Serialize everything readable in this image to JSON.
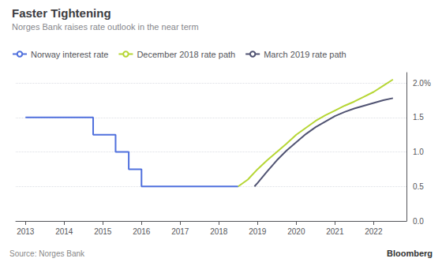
{
  "chart_data": {
    "type": "line",
    "title": "Faster Tightening",
    "subtitle": "Norges Bank raises rate outlook in the near term",
    "annotations": [
      "Source: Norges Bank",
      "Bloomberg"
    ],
    "xlim": [
      2012.75,
      2022.85
    ],
    "xticks": [
      2013,
      2014,
      2015,
      2016,
      2017,
      2018,
      2019,
      2020,
      2021,
      2022
    ],
    "ylim": [
      0.0,
      2.15
    ],
    "yticks": [
      {
        "value": 0.0,
        "label": "0.0"
      },
      0.5,
      {
        "value": 1.0,
        "label": "1.0"
      },
      1.5,
      {
        "value": 2.0,
        "label": "2.0%"
      }
    ],
    "grid": "y",
    "legend": "upper left",
    "series": [
      {
        "name": "Norway interest rate",
        "x": [
          2013.0,
          2014.75,
          2014.75,
          2015.33,
          2015.33,
          2015.67,
          2015.67,
          2016.0,
          2016.0,
          2018.5
        ],
        "values": [
          1.5,
          1.5,
          1.25,
          1.25,
          1.0,
          1.0,
          0.75,
          0.75,
          0.5,
          0.5
        ]
      },
      {
        "name": "December 2018 rate path",
        "x": [
          2018.5,
          2018.75,
          2019.0,
          2019.25,
          2019.5,
          2019.75,
          2020.0,
          2020.25,
          2020.5,
          2020.75,
          2021.0,
          2021.25,
          2021.5,
          2021.75,
          2022.0,
          2022.25,
          2022.5
        ],
        "values": [
          0.5,
          0.6,
          0.75,
          0.88,
          1.0,
          1.12,
          1.25,
          1.35,
          1.45,
          1.53,
          1.6,
          1.67,
          1.73,
          1.8,
          1.87,
          1.96,
          2.05
        ]
      },
      {
        "name": "March 2019 rate path",
        "x": [
          2018.92,
          2019.0,
          2019.25,
          2019.5,
          2019.75,
          2020.0,
          2020.25,
          2020.5,
          2020.75,
          2021.0,
          2021.25,
          2021.5,
          2021.75,
          2022.0,
          2022.25,
          2022.5
        ],
        "values": [
          0.5,
          0.55,
          0.72,
          0.88,
          1.02,
          1.14,
          1.26,
          1.36,
          1.44,
          1.52,
          1.58,
          1.63,
          1.67,
          1.71,
          1.75,
          1.78
        ]
      }
    ]
  }
}
